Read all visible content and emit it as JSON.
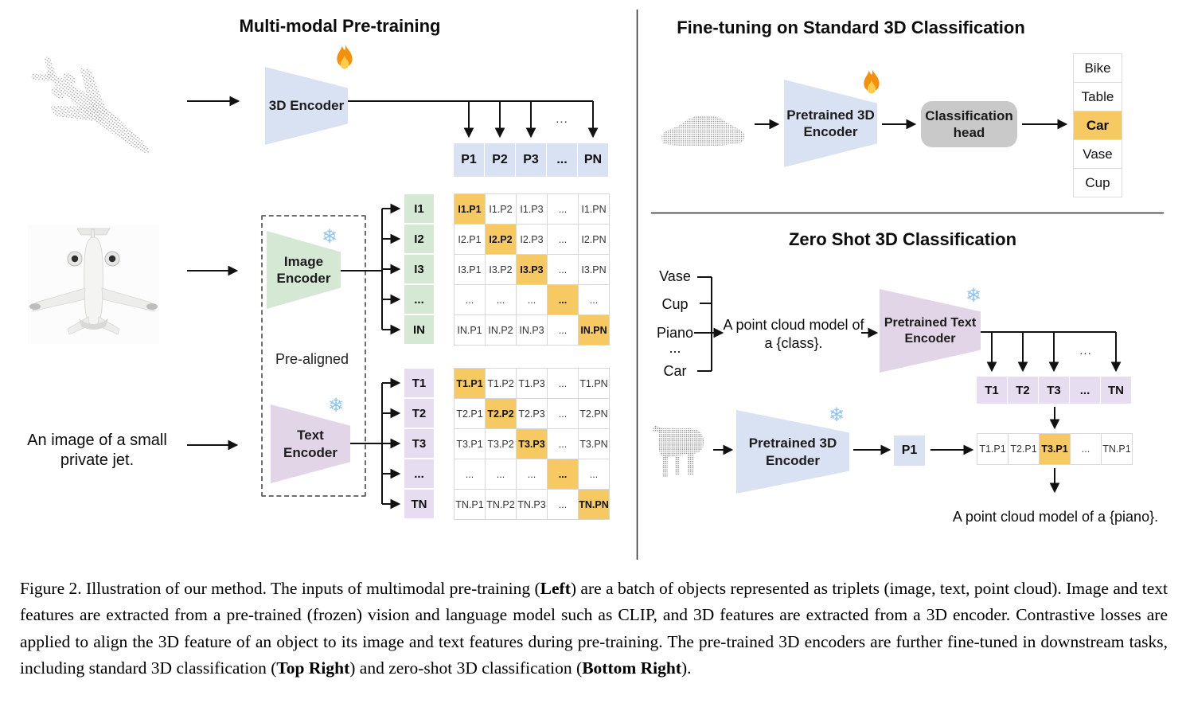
{
  "colors": {
    "blue": "#D9E2F3",
    "green": "#D5E8D4",
    "purple": "#E1D5E7",
    "purple-light": "#E6DDF0",
    "orange": "#F7C963",
    "head-gray": "#C9C9C9"
  },
  "left": {
    "title": "Multi-modal Pre-training",
    "encoder_3d_label": "3D Encoder",
    "p_row": [
      "P1",
      "P2",
      "P3",
      "...",
      "PN"
    ],
    "branch_ellipsis": "...",
    "image_encoder_label": [
      "Image",
      "Encoder"
    ],
    "text_encoder_label": [
      "Text",
      "Encoder"
    ],
    "pre_aligned": "Pre-aligned",
    "input_text": [
      "An image of a small",
      "private jet."
    ],
    "i_labels": [
      "I1",
      "I2",
      "I3",
      "...",
      "IN"
    ],
    "t_labels": [
      "T1",
      "T2",
      "T3",
      "...",
      "TN"
    ],
    "i_matrix": [
      [
        "I1.P1",
        "I1.P2",
        "I1.P3",
        "...",
        "I1.PN"
      ],
      [
        "I2.P1",
        "I2.P2",
        "I2.P3",
        "...",
        "I2.PN"
      ],
      [
        "I3.P1",
        "I3.P2",
        "I3.P3",
        "...",
        "I3.PN"
      ],
      [
        "...",
        "...",
        "...",
        "...",
        "..."
      ],
      [
        "IN.P1",
        "IN.P2",
        "IN.P3",
        "...",
        "IN.PN"
      ]
    ],
    "t_matrix": [
      [
        "T1.P1",
        "T1.P2",
        "T1.P3",
        "...",
        "T1.PN"
      ],
      [
        "T2.P1",
        "T2.P2",
        "T2.P3",
        "...",
        "T2.PN"
      ],
      [
        "T3.P1",
        "T3.P2",
        "T3.P3",
        "...",
        "T3.PN"
      ],
      [
        "...",
        "...",
        "...",
        "...",
        "..."
      ],
      [
        "TN.P1",
        "TN.P2",
        "TN.P3",
        "...",
        "TN.PN"
      ]
    ]
  },
  "top_right": {
    "title": "Fine-tuning on Standard 3D Classification",
    "encoder_label": [
      "Pretrained 3D",
      "Encoder"
    ],
    "head_label": [
      "Classification",
      "head"
    ],
    "classes": [
      "Bike",
      "Table",
      "Car",
      "Vase",
      "Cup"
    ],
    "highlighted_class": "Car"
  },
  "bottom_right": {
    "title": "Zero Shot 3D Classification",
    "class_list": [
      "Vase",
      "Cup",
      "Piano",
      "...",
      "Car"
    ],
    "prompt": [
      "A point cloud model of",
      "a {class}."
    ],
    "text_encoder_label": [
      "Pretrained Text",
      "Encoder"
    ],
    "t_row": [
      "T1",
      "T2",
      "T3",
      "...",
      "TN"
    ],
    "branch_ellipsis": "...",
    "encoder_3d_label": [
      "Pretrained 3D",
      "Encoder"
    ],
    "p1_label": "P1",
    "result_row": [
      "T1.P1",
      "T2.P1",
      "T3.P1",
      "...",
      "TN.P1"
    ],
    "highlighted_result": "T3.P1",
    "output_text": "A point cloud model of a {piano}."
  },
  "caption": {
    "segments": [
      {
        "text": "Figure 2. Illustration of our method. The inputs of multimodal pre-training (",
        "bold": false
      },
      {
        "text": "Left",
        "bold": true
      },
      {
        "text": ") are a batch of objects represented as triplets (image, text, point cloud). Image and text features are extracted from a pre-trained (frozen) vision and language model such as CLIP, and 3D features are extracted from a 3D encoder. Contrastive losses are applied to align the 3D feature of an object to its image and text features during pre-training. The pre-trained 3D encoders are further fine-tuned in downstream tasks, including standard 3D classification (",
        "bold": false
      },
      {
        "text": "Top Right",
        "bold": true
      },
      {
        "text": ") and zero-shot 3D classification (",
        "bold": false
      },
      {
        "text": "Bottom Right",
        "bold": true
      },
      {
        "text": ").",
        "bold": false
      }
    ]
  }
}
